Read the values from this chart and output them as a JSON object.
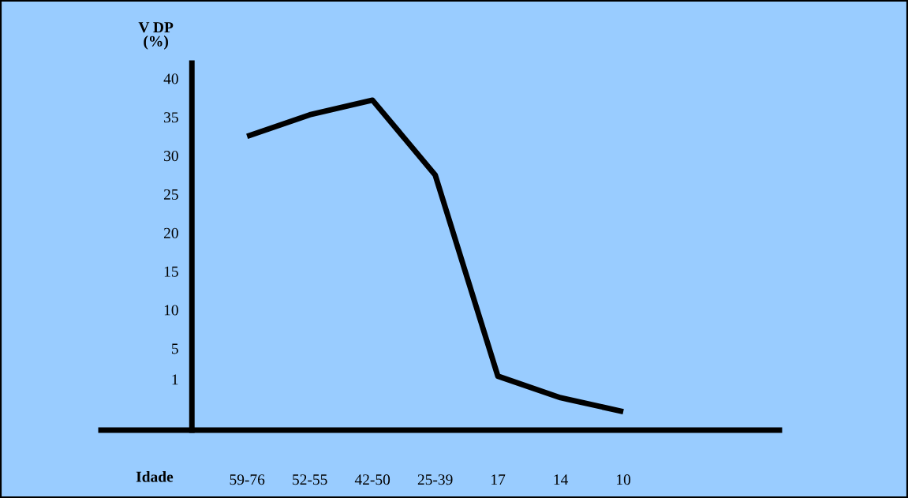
{
  "chart_data": {
    "type": "line",
    "categories": [
      "59-76",
      "52-55",
      "42-50",
      "25-39",
      "17",
      "14",
      "10"
    ],
    "series": [
      {
        "color": "#000000",
        "values": [
          32.5,
          35.3,
          37.2,
          27.5,
          1.4,
          -1.4,
          -3.2
        ]
      }
    ],
    "xlabel": "Idade",
    "ylabel": "V DP\n(%)",
    "ylim": [
      -5.6,
      42
    ],
    "yticks": [
      1,
      5,
      10,
      15,
      20,
      25,
      30,
      35,
      40
    ],
    "grid": false,
    "legend": false,
    "marker": "none",
    "line_style": "solid"
  }
}
